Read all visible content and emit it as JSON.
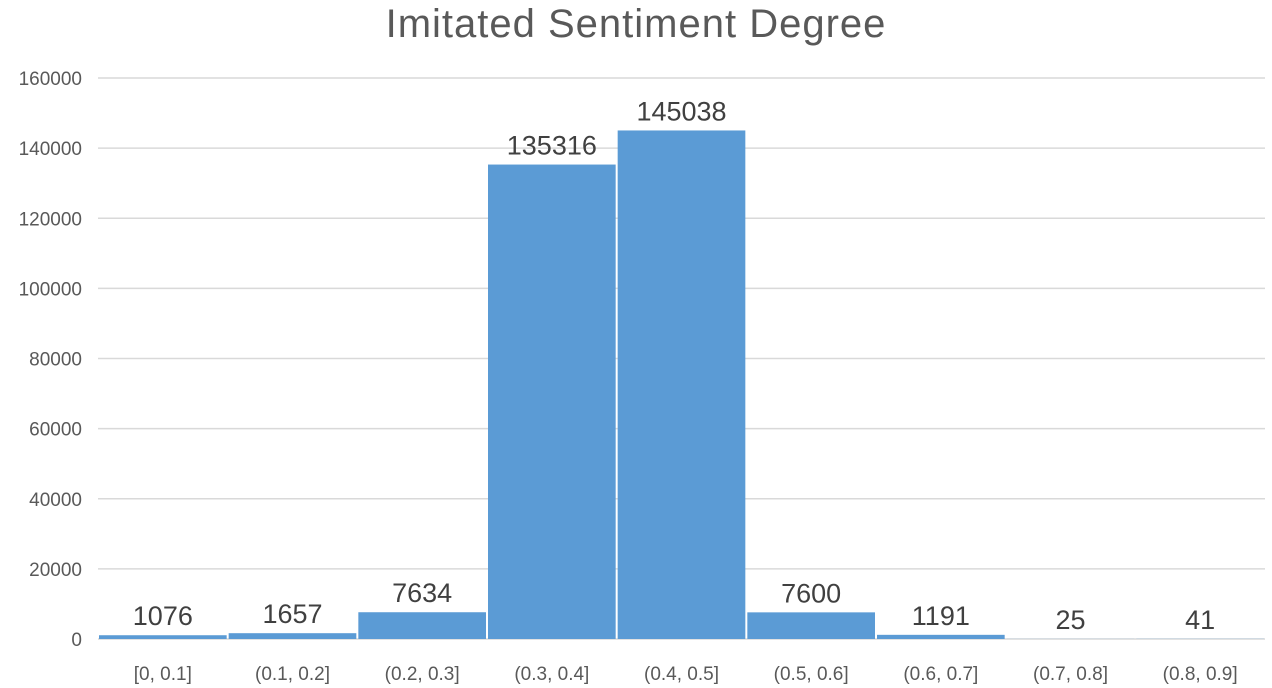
{
  "chart_data": {
    "type": "bar",
    "title": "Imitated Sentiment Degree",
    "categories": [
      "[0, 0.1]",
      "(0.1, 0.2]",
      "(0.2, 0.3]",
      "(0.3, 0.4]",
      "(0.4, 0.5]",
      "(0.5, 0.6]",
      "(0.6, 0.7]",
      "(0.7, 0.8]",
      "(0.8, 0.9]"
    ],
    "values": [
      1076,
      1657,
      7634,
      135316,
      145038,
      7600,
      1191,
      25,
      41
    ],
    "ylim": [
      0,
      160000
    ],
    "yticks": [
      0,
      20000,
      40000,
      60000,
      80000,
      100000,
      120000,
      140000,
      160000
    ],
    "grid": true,
    "legend": "none",
    "data_labels": true,
    "bar_color": "#5B9BD5",
    "grid_color": "#D9D9D9",
    "text_color": "#595959"
  }
}
